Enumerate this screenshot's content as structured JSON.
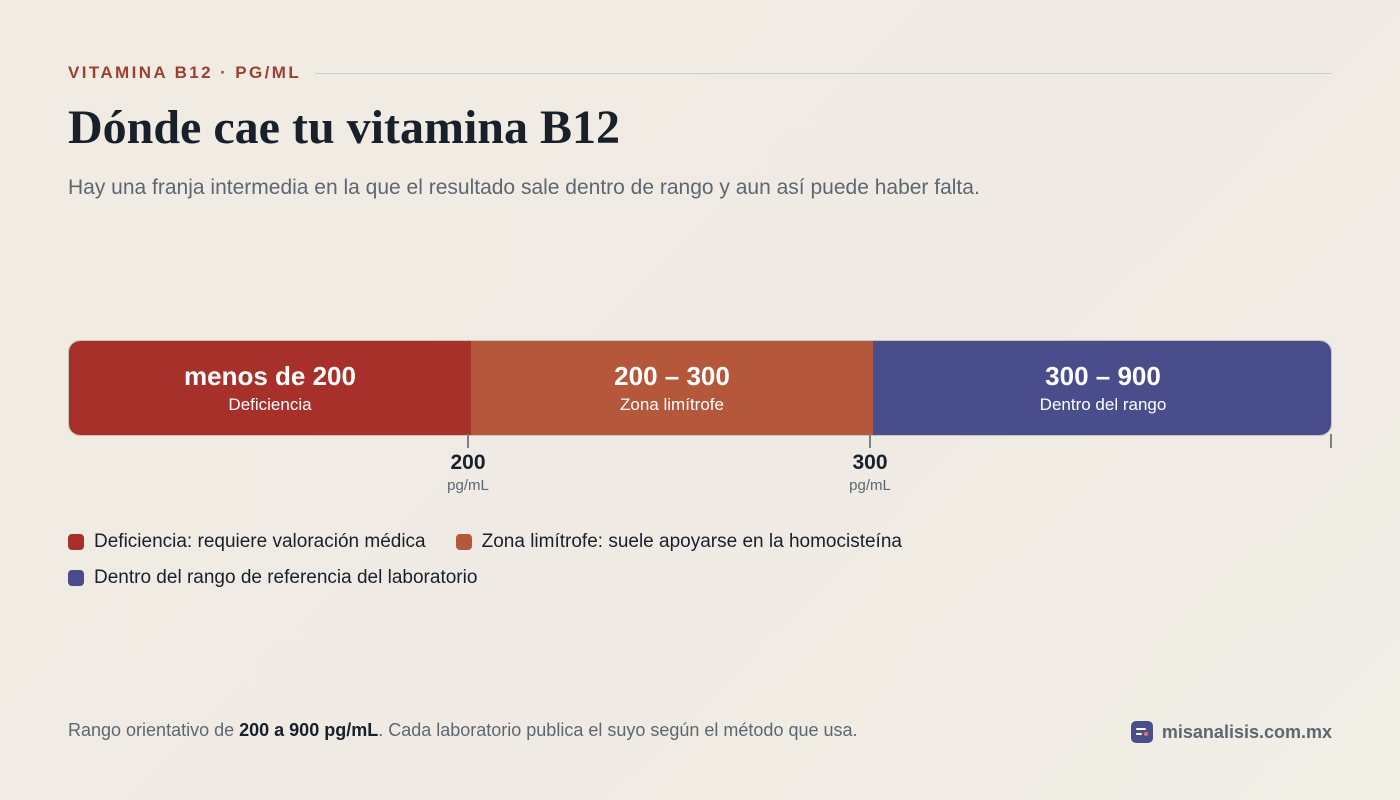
{
  "header": {
    "eyebrow": "VITAMINA B12 · PG/ML",
    "title": "Dónde cae tu vitamina B12",
    "subtitle": "Hay una franja intermedia en la que el resultado sale dentro de rango y aun así puede haber falta."
  },
  "chart_data": {
    "type": "bar",
    "orientation": "horizontal-stacked-range",
    "unit": "pg/mL",
    "xlim": [
      0,
      900
    ],
    "segments": [
      {
        "range_label": "menos de 200",
        "label": "Deficiencia",
        "from": 0,
        "to": 200,
        "color": "#a8302a"
      },
      {
        "range_label": "200 – 300",
        "label": "Zona limítrofe",
        "from": 200,
        "to": 300,
        "color": "#b5573a"
      },
      {
        "range_label": "300 – 900",
        "label": "Dentro del rango",
        "from": 300,
        "to": 900,
        "color": "#4a4d8c"
      }
    ],
    "ticks": [
      {
        "value": 200,
        "label": "200",
        "unit": "pg/mL"
      },
      {
        "value": 300,
        "label": "300",
        "unit": "pg/mL"
      },
      {
        "value": 900,
        "label": "",
        "unit": ""
      }
    ]
  },
  "legend": {
    "items": [
      {
        "text": "Deficiencia: requiere valoración médica",
        "color": "#a8302a"
      },
      {
        "text": "Zona limítrofe: suele apoyarse en la homocisteína",
        "color": "#b5573a"
      },
      {
        "text": "Dentro del rango de referencia del laboratorio",
        "color": "#4a4d8c"
      }
    ]
  },
  "footer": {
    "note_prefix": "Rango orientativo de ",
    "note_bold": "200 a 900 pg/mL",
    "note_suffix": ". Cada laboratorio publica el suyo según el método que usa.",
    "brand": "misanalisis.com.mx",
    "brand_icon": "chart-logo-icon"
  }
}
